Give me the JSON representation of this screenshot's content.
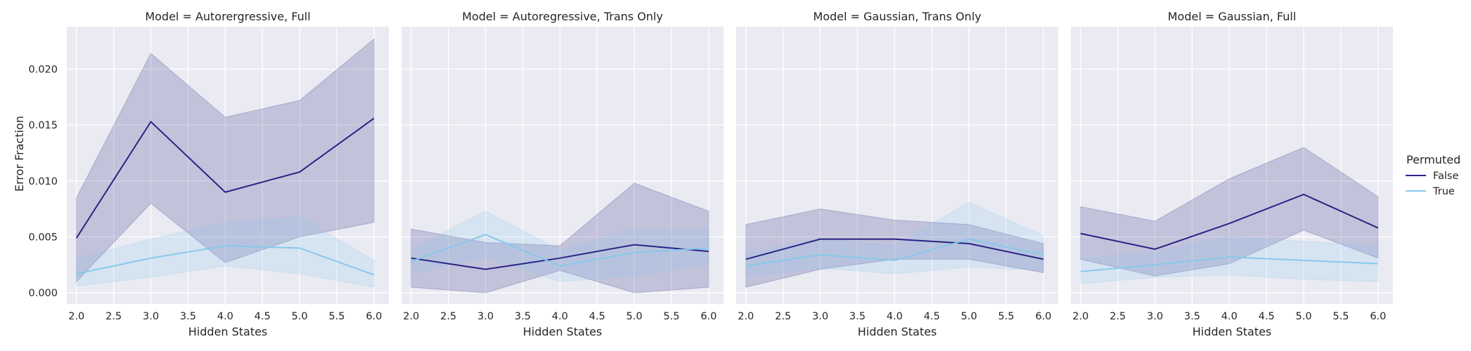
{
  "chart_data": [
    {
      "type": "line",
      "title": "Model = Autorergressive, Full",
      "xlabel": "Hidden States",
      "ylabel": "Error Fraction",
      "x": [
        2.0,
        3.0,
        4.0,
        5.0,
        6.0
      ],
      "xticks": [
        "2.0",
        "2.5",
        "3.0",
        "3.5",
        "4.0",
        "4.5",
        "5.0",
        "5.5",
        "6.0"
      ],
      "yticks": [
        "0.000",
        "0.005",
        "0.010",
        "0.015",
        "0.020"
      ],
      "xlim": [
        1.87,
        6.2
      ],
      "ylim": [
        -0.001,
        0.0238
      ],
      "grid": true,
      "series": [
        {
          "name": "False",
          "values": [
            0.0049,
            0.0153,
            0.009,
            0.0108,
            0.0156
          ],
          "lower": [
            0.001,
            0.008,
            0.0027,
            0.005,
            0.0063
          ],
          "upper": [
            0.0085,
            0.0214,
            0.0157,
            0.0172,
            0.0227
          ]
        },
        {
          "name": "True",
          "values": [
            0.0017,
            0.0031,
            0.0042,
            0.004,
            0.0016
          ],
          "lower": [
            0.0006,
            0.0014,
            0.0024,
            0.0017,
            0.0005
          ],
          "upper": [
            0.003,
            0.0048,
            0.0063,
            0.0068,
            0.0029
          ]
        }
      ]
    },
    {
      "type": "line",
      "title": "Model = Autoregressive, Trans Only",
      "xlabel": "Hidden States",
      "ylabel": "",
      "x": [
        2.0,
        3.0,
        4.0,
        5.0,
        6.0
      ],
      "xticks": [
        "2.0",
        "2.5",
        "3.0",
        "3.5",
        "4.0",
        "4.5",
        "5.0",
        "5.5",
        "6.0"
      ],
      "yticks": [],
      "xlim": [
        1.87,
        6.2
      ],
      "ylim": [
        -0.001,
        0.0238
      ],
      "grid": true,
      "series": [
        {
          "name": "False",
          "values": [
            0.0031,
            0.0021,
            0.0031,
            0.0043,
            0.0037
          ],
          "lower": [
            0.0005,
            0.0,
            0.002,
            0.0,
            0.0005
          ],
          "upper": [
            0.0057,
            0.0045,
            0.0042,
            0.0098,
            0.0073
          ]
        },
        {
          "name": "True",
          "values": [
            0.0028,
            0.0052,
            0.0024,
            0.0036,
            0.004
          ],
          "lower": [
            0.0017,
            0.0032,
            0.001,
            0.0015,
            0.0025
          ],
          "upper": [
            0.0039,
            0.0073,
            0.0038,
            0.0057,
            0.0056
          ]
        }
      ]
    },
    {
      "type": "line",
      "title": "Model = Gaussian, Trans Only",
      "xlabel": "Hidden States",
      "ylabel": "",
      "x": [
        2.0,
        3.0,
        4.0,
        5.0,
        6.0
      ],
      "xticks": [
        "2.0",
        "2.5",
        "3.0",
        "3.5",
        "4.0",
        "4.5",
        "5.0",
        "5.5",
        "6.0"
      ],
      "yticks": [],
      "xlim": [
        1.87,
        6.2
      ],
      "ylim": [
        -0.001,
        0.0238
      ],
      "grid": true,
      "series": [
        {
          "name": "False",
          "values": [
            0.003,
            0.0048,
            0.0048,
            0.0044,
            0.003
          ],
          "lower": [
            0.0005,
            0.0021,
            0.003,
            0.003,
            0.0018
          ],
          "upper": [
            0.0061,
            0.0075,
            0.0065,
            0.0061,
            0.0044
          ]
        },
        {
          "name": "True",
          "values": [
            0.0024,
            0.0034,
            0.0029,
            0.0048,
            0.0034
          ],
          "lower": [
            0.0014,
            0.0022,
            0.0017,
            0.0023,
            0.002
          ],
          "upper": [
            0.0035,
            0.0049,
            0.0042,
            0.0081,
            0.0051
          ]
        }
      ]
    },
    {
      "type": "line",
      "title": "Model = Gaussian, Full",
      "xlabel": "Hidden States",
      "ylabel": "",
      "x": [
        2.0,
        3.0,
        4.0,
        5.0,
        6.0
      ],
      "xticks": [
        "2.0",
        "2.5",
        "3.0",
        "3.5",
        "4.0",
        "4.5",
        "5.0",
        "5.5",
        "6.0"
      ],
      "yticks": [],
      "xlim": [
        1.87,
        6.2
      ],
      "ylim": [
        -0.001,
        0.0238
      ],
      "grid": true,
      "series": [
        {
          "name": "False",
          "values": [
            0.0053,
            0.0039,
            0.0062,
            0.0088,
            0.0058
          ],
          "lower": [
            0.003,
            0.0015,
            0.0026,
            0.0056,
            0.0031
          ],
          "upper": [
            0.0077,
            0.0064,
            0.0102,
            0.013,
            0.0086
          ]
        },
        {
          "name": "True",
          "values": [
            0.0019,
            0.0025,
            0.0032,
            0.0029,
            0.0026
          ],
          "lower": [
            0.0008,
            0.0014,
            0.0016,
            0.0012,
            0.001
          ],
          "upper": [
            0.003,
            0.0037,
            0.005,
            0.0046,
            0.0042
          ]
        }
      ]
    }
  ],
  "legend": {
    "title": "Permuted",
    "placement": "right",
    "entries": [
      {
        "label": "False",
        "color": "#2a2384"
      },
      {
        "label": "True",
        "color": "#87c8ec"
      }
    ]
  },
  "colors": {
    "plot_background": "#eaeaf2",
    "grid": "#ffffff",
    "false_line": "#2a2384",
    "false_band": "#2a2384",
    "true_line": "#87c8ec",
    "true_band": "#87c8ec"
  }
}
